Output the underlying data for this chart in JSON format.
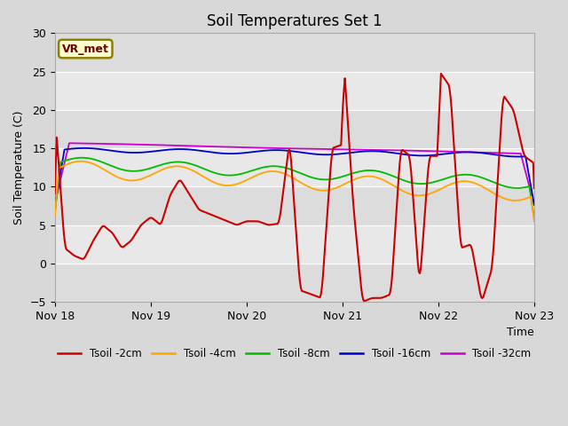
{
  "title": "Soil Temperatures Set 1",
  "xlabel": "Time",
  "ylabel": "Soil Temperature (C)",
  "ylim": [
    -5,
    30
  ],
  "yticks": [
    -5,
    0,
    5,
    10,
    15,
    20,
    25,
    30
  ],
  "bg_color": "#d8d8d8",
  "plot_bg": "#e8e8e8",
  "annotation_text": "VR_met",
  "annotation_bg": "#ffffcc",
  "annotation_border": "#8B8000",
  "series_colors": {
    "Tsoil -2cm": "#cc0000",
    "Tsoil -4cm": "#ffa500",
    "Tsoil -8cm": "#00bb00",
    "Tsoil -16cm": "#0000cc",
    "Tsoil -32cm": "#cc00cc"
  },
  "x_tick_labels": [
    "Nov 18",
    "Nov 19",
    "Nov 20",
    "Nov 21",
    "Nov 22",
    "Nov 23"
  ],
  "x_tick_positions": [
    0,
    1,
    2,
    3,
    4,
    5
  ]
}
